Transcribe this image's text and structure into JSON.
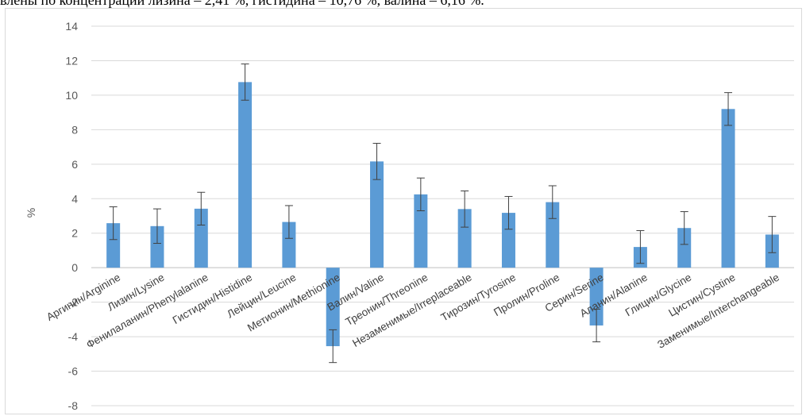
{
  "caption": "влены по концентрации лизина – 2,41 %, гистидина – 10,76 %, валина – 6,16 %.",
  "chart_data": {
    "type": "bar",
    "title": "",
    "xlabel": "",
    "ylabel": "%",
    "ylim": [
      -8,
      14
    ],
    "yticks": [
      -8,
      -6,
      -4,
      -2,
      0,
      2,
      4,
      6,
      8,
      10,
      12,
      14
    ],
    "grid": true,
    "bar_color": "#5b9bd5",
    "categories": [
      "Аргинин/Arginine",
      "Лизин/Lysine",
      "Фенилаланин/Phenylalanine",
      "Гистидин/Histidine",
      "Лейцин/Leucine",
      "Метионин/Methionine",
      "Валин/Valine",
      "Треонин/Threonine",
      "Незаменимые/Irreplaceable",
      "Тирозин/Tyrosine",
      "Пролин/Proline",
      "Серин/Serine",
      "Аланин/Alanine",
      "Глицин/Glycine",
      "Цистин/Cystine",
      "Заменимые/Interchangeable"
    ],
    "values": [
      2.58,
      2.41,
      3.42,
      10.76,
      2.65,
      -4.55,
      6.16,
      4.25,
      3.4,
      3.18,
      3.8,
      -3.35,
      1.2,
      2.3,
      9.2,
      1.92
    ],
    "errors": [
      0.95,
      1.0,
      0.95,
      1.05,
      0.95,
      0.95,
      1.05,
      0.95,
      1.05,
      0.95,
      0.95,
      0.95,
      0.95,
      0.95,
      0.95,
      1.05
    ]
  }
}
